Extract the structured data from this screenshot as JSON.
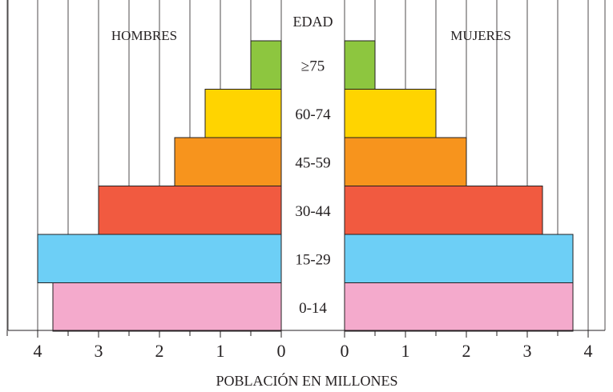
{
  "chart_data": {
    "type": "bar",
    "title": "",
    "age_axis_title": "EDAD",
    "xlabel": "POBLACIÓN EN MILLONES",
    "categories": [
      "≥75",
      "60-74",
      "45-59",
      "30-44",
      "15-29",
      "0-14"
    ],
    "series": [
      {
        "name": "HOMBRES",
        "values": [
          0.5,
          1.25,
          1.75,
          3.0,
          4.0,
          3.75
        ]
      },
      {
        "name": "MUJERES",
        "values": [
          0.5,
          1.5,
          2.0,
          3.25,
          3.75,
          3.75
        ]
      }
    ],
    "colors": [
      "#8dc63f",
      "#ffd400",
      "#f7941d",
      "#f15a40",
      "#6dcff6",
      "#f4aacc"
    ],
    "xlim": [
      0,
      4
    ],
    "x_ticks": [
      4,
      3,
      2,
      1,
      0
    ],
    "x_tick_labels": [
      "4",
      "3",
      "2",
      "1",
      "0"
    ],
    "gridlines_every": 0.5,
    "grid": true,
    "legend": "series names printed in top corners of each half"
  }
}
